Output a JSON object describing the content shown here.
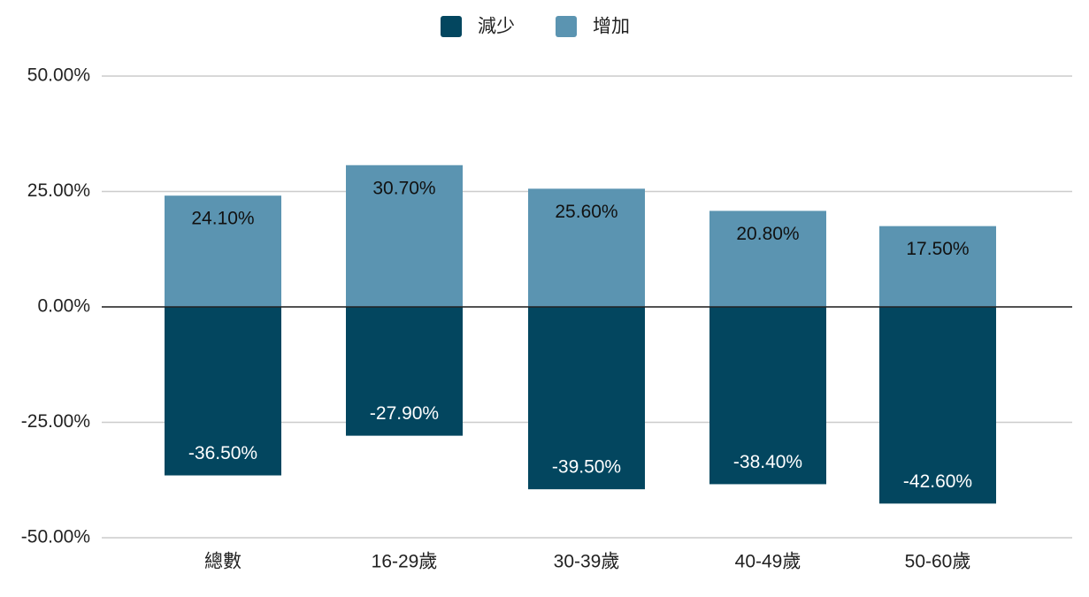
{
  "chart_data": {
    "type": "bar",
    "stacked": true,
    "categories": [
      "總數",
      "16-29歲",
      "30-39歲",
      "40-49歲",
      "50-60歲"
    ],
    "series": [
      {
        "name": "減少",
        "color": "#03465f",
        "values": [
          -36.5,
          -27.9,
          -39.5,
          -38.4,
          -42.6
        ],
        "value_labels": [
          "-36.50%",
          "-27.90%",
          "-39.50%",
          "-38.40%",
          "-42.60%"
        ]
      },
      {
        "name": "增加",
        "color": "#5b94b1",
        "values": [
          24.1,
          30.7,
          25.6,
          20.8,
          17.5
        ],
        "value_labels": [
          "24.10%",
          "30.70%",
          "25.60%",
          "20.80%",
          "17.50%"
        ]
      }
    ],
    "ylim": [
      -50,
      50
    ],
    "yticks": [
      {
        "value": -50,
        "label": "-50.00%"
      },
      {
        "value": -25,
        "label": "-25.00%"
      },
      {
        "value": 0,
        "label": "0.00%"
      },
      {
        "value": 25,
        "label": "25.00%"
      },
      {
        "value": 50,
        "label": "50.00%"
      }
    ],
    "grid": true,
    "legend": "top"
  }
}
